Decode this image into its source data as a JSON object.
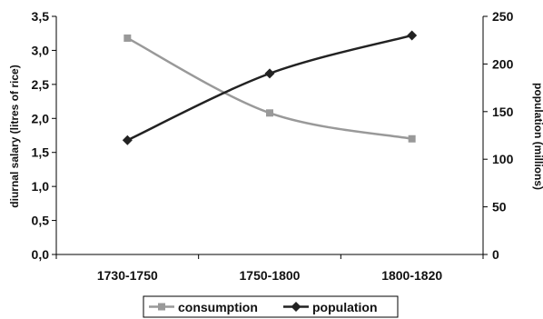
{
  "chart_data": {
    "type": "line",
    "categories": [
      "1730-1750",
      "1750-1800",
      "1800-1820"
    ],
    "series": [
      {
        "name": "consumption",
        "axis": "left",
        "values": [
          3.18,
          2.08,
          1.7
        ],
        "color": "#999999",
        "marker": "square"
      },
      {
        "name": "population",
        "axis": "right",
        "values": [
          120,
          190,
          230
        ],
        "color": "#222222",
        "marker": "diamond"
      }
    ],
    "ylabel_left": "diurnal salary (litres of rice)",
    "ylabel_right": "population (millions)",
    "ylim_left": [
      0,
      3.5
    ],
    "ylim_right": [
      0,
      250
    ],
    "yticks_left": [
      "0,0",
      "0,5",
      "1,0",
      "1,5",
      "2,0",
      "2,5",
      "3,0",
      "3,5"
    ],
    "yticks_right": [
      "0",
      "50",
      "100",
      "150",
      "200",
      "250"
    ],
    "grid": false,
    "legend_position": "bottom"
  }
}
